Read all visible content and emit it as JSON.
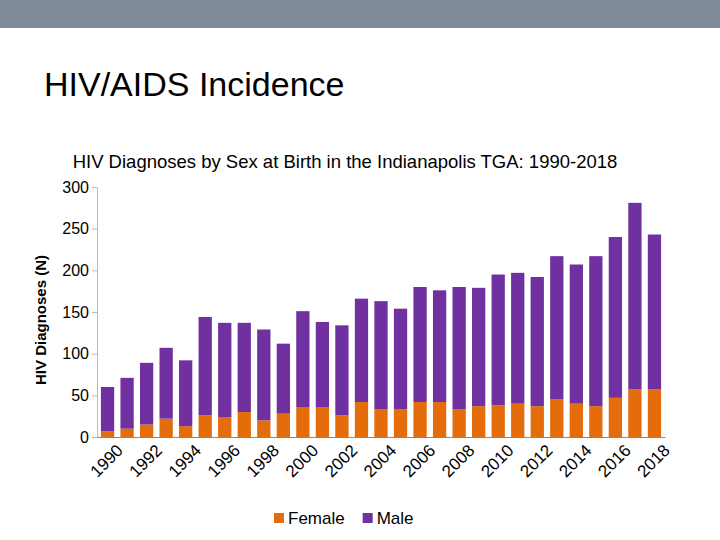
{
  "page": {
    "title": "HIV/AIDS Incidence"
  },
  "chart_data": {
    "type": "bar",
    "title": "HIV Diagnoses by Sex at Birth in the Indianapolis TGA: 1990-2018",
    "y_label": "HIV Diagnoses (N)",
    "categories": [
      "1990",
      null,
      "1992",
      null,
      "1994",
      null,
      "1996",
      null,
      "1998",
      null,
      "2000",
      null,
      "2002",
      null,
      "2004",
      null,
      "2006",
      null,
      "2008",
      null,
      "2010",
      null,
      "2012",
      null,
      "2014",
      null,
      "2016",
      null,
      "2018"
    ],
    "series": [
      {
        "name": "Female",
        "color": "#e46c0a",
        "values": [
          7,
          10,
          15,
          22,
          13,
          26,
          24,
          30,
          20,
          28,
          36,
          36,
          26,
          42,
          33,
          33,
          42,
          42,
          33,
          37,
          38,
          40,
          37,
          45,
          40,
          37,
          47,
          57,
          57
        ]
      },
      {
        "name": "Male",
        "color": "#7030a0",
        "values": [
          53,
          61,
          74,
          85,
          79,
          118,
          113,
          107,
          109,
          84,
          115,
          102,
          108,
          124,
          130,
          121,
          138,
          134,
          147,
          142,
          157,
          157,
          155,
          172,
          167,
          180,
          193,
          224,
          186
        ]
      }
    ],
    "stacked": true,
    "ylim": [
      0,
      300
    ],
    "yticks": [
      0,
      50,
      100,
      150,
      200,
      250,
      300
    ],
    "grid": false,
    "legend": "bottom"
  }
}
